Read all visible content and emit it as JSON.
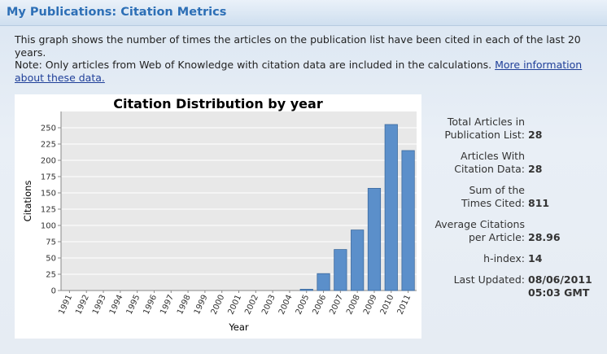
{
  "header": {
    "title": "My Publications: Citation Metrics"
  },
  "description": {
    "line1": "This graph shows the number of times the articles on the publication list have been cited in each of the last 20 years.",
    "note": "Note: Only articles from Web of Knowledge with citation data are included in the calculations.",
    "link": "More information about these data."
  },
  "chart_data": {
    "type": "bar",
    "title": "Citation Distribution by year",
    "x_label": "Year",
    "y_label": "Citations",
    "categories": [
      "1991",
      "1992",
      "1993",
      "1994",
      "1995",
      "1996",
      "1997",
      "1998",
      "1999",
      "2000",
      "2001",
      "2002",
      "2003",
      "2004",
      "2005",
      "2006",
      "2007",
      "2008",
      "2009",
      "2010",
      "2011"
    ],
    "values": [
      0,
      0,
      0,
      0,
      0,
      0,
      0,
      0,
      0,
      0,
      0,
      0,
      0,
      0,
      2,
      26,
      63,
      93,
      157,
      255,
      215
    ],
    "color": "#5b8fca",
    "ylim": [
      0,
      275
    ],
    "yticks": [
      0,
      25,
      50,
      75,
      100,
      125,
      150,
      175,
      200,
      225,
      250
    ],
    "grid": true
  },
  "stats": [
    {
      "label_lines": [
        "Total Articles in",
        "Publication List:"
      ],
      "value_lines": [
        "28"
      ]
    },
    {
      "label_lines": [
        "Articles With",
        "Citation Data:"
      ],
      "value_lines": [
        "28"
      ]
    },
    {
      "label_lines": [
        "Sum of the",
        "Times Cited:"
      ],
      "value_lines": [
        "811"
      ]
    },
    {
      "label_lines": [
        "Average Citations",
        "per Article:"
      ],
      "value_lines": [
        "28.96"
      ]
    },
    {
      "label_lines": [
        "h-index:"
      ],
      "value_lines": [
        "14"
      ]
    },
    {
      "label_lines": [
        "Last Updated:"
      ],
      "value_lines": [
        "08/06/2011",
        "05:03 GMT"
      ]
    }
  ]
}
